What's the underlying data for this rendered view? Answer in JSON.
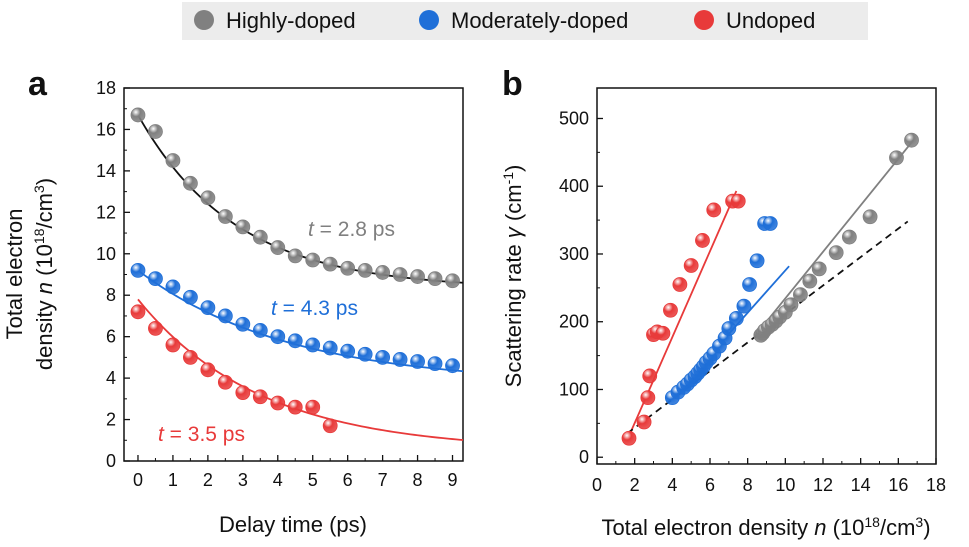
{
  "colors": {
    "highly": "#808080",
    "moderately": "#1f6fd8",
    "undoped": "#e83a3a",
    "fit_highly": "#111111"
  },
  "legend": {
    "items": [
      {
        "label": "Highly-doped",
        "color": "#808080"
      },
      {
        "label": "Moderately-doped",
        "color": "#1f6fd8"
      },
      {
        "label": "Undoped",
        "color": "#e83a3a"
      }
    ]
  },
  "chart_data": [
    {
      "panel": "a",
      "type": "scatter",
      "xlabel": "Delay time (ps)",
      "ylabel_line1": "Total electron",
      "ylabel_line2_pre": "density ",
      "ylabel_var": "n",
      "ylabel_line2_post": " (10",
      "ylabel_sup": "18",
      "ylabel_tail": "/cm",
      "ylabel_sup2": "3",
      "ylabel_close": ")",
      "xlim": [
        -0.4,
        9.3
      ],
      "ylim": [
        0,
        18
      ],
      "xticks": [
        "0",
        "1",
        "2",
        "3",
        "4",
        "5",
        "6",
        "7",
        "8",
        "9"
      ],
      "yticks": [
        "0",
        "2",
        "4",
        "6",
        "8",
        "10",
        "12",
        "14",
        "16",
        "18"
      ],
      "series": [
        {
          "name": "Highly-doped",
          "x": [
            0,
            0.5,
            1,
            1.5,
            2,
            2.5,
            3,
            3.5,
            4,
            4.5,
            5,
            5.5,
            6,
            6.5,
            7,
            7.5,
            8,
            8.5,
            9
          ],
          "y": [
            16.7,
            15.9,
            14.5,
            13.4,
            12.7,
            11.8,
            11.3,
            10.8,
            10.3,
            9.9,
            9.7,
            9.5,
            9.3,
            9.2,
            9.1,
            9.0,
            8.9,
            8.8,
            8.7
          ]
        },
        {
          "name": "Moderately-doped",
          "x": [
            0,
            0.5,
            1,
            1.5,
            2,
            2.5,
            3,
            3.5,
            4,
            4.5,
            5,
            5.5,
            6,
            6.5,
            7,
            7.5,
            8,
            8.5,
            9
          ],
          "y": [
            9.2,
            8.8,
            8.4,
            7.9,
            7.4,
            7.0,
            6.6,
            6.3,
            6.0,
            5.8,
            5.6,
            5.45,
            5.3,
            5.15,
            5.0,
            4.9,
            4.8,
            4.7,
            4.6
          ]
        },
        {
          "name": "Undoped",
          "x": [
            0,
            0.5,
            1,
            1.5,
            2,
            2.5,
            3,
            3.5,
            4,
            4.5,
            5,
            5.5
          ],
          "y": [
            7.2,
            6.4,
            5.6,
            5.0,
            4.4,
            3.8,
            3.3,
            3.1,
            2.8,
            2.6,
            2.6,
            1.7
          ]
        }
      ],
      "fits": [
        {
          "series": "Highly-doped",
          "tau": 2.8,
          "a": 8.4,
          "c": 8.3,
          "xmax": 9.3
        },
        {
          "series": "Moderately-doped",
          "tau": 4.3,
          "a": 5.5,
          "c": 3.7,
          "xmax": 9.3
        },
        {
          "series": "Undoped",
          "tau": 3.5,
          "a": 7.3,
          "c": 0.5,
          "xmax": 9.3
        }
      ],
      "annotations": [
        {
          "var": "t",
          "text": " = 2.8 ps",
          "series": "Highly-doped"
        },
        {
          "var": "t",
          "text": " = 4.3 ps",
          "series": "Moderately-doped"
        },
        {
          "var": "t",
          "text": " = 3.5 ps",
          "series": "Undoped"
        }
      ]
    },
    {
      "panel": "b",
      "type": "scatter",
      "xlabel_pre": "Total electron density ",
      "xlabel_var": "n",
      "xlabel_mid": " (10",
      "xlabel_sup": "18",
      "xlabel_tail": "/cm",
      "xlabel_sup2": "3",
      "xlabel_close": ")",
      "ylabel_pre": "Scattering rate ",
      "ylabel_var": "γ",
      "ylabel_mid": " (cm",
      "ylabel_sup": "-1",
      "ylabel_close": ")",
      "xlim": [
        0,
        18
      ],
      "ylim": [
        -10,
        545
      ],
      "xticks": [
        "0",
        "2",
        "4",
        "6",
        "8",
        "10",
        "12",
        "14",
        "16",
        "18"
      ],
      "yticks": [
        "0",
        "100",
        "200",
        "300",
        "400",
        "500"
      ],
      "series": [
        {
          "name": "Highly-doped",
          "x": [
            8.7,
            8.8,
            8.9,
            9.1,
            9.3,
            9.5,
            9.7,
            10.0,
            10.3,
            10.8,
            11.3,
            11.8,
            12.7,
            13.4,
            14.5,
            15.9,
            16.7
          ],
          "y": [
            180,
            183,
            187,
            192,
            196,
            201,
            207,
            214,
            225,
            240,
            260,
            278,
            302,
            325,
            355,
            442,
            468
          ]
        },
        {
          "name": "Moderately-doped",
          "x": [
            4.0,
            4.3,
            4.6,
            4.8,
            5.0,
            5.2,
            5.35,
            5.5,
            5.65,
            5.8,
            6.0,
            6.2,
            6.5,
            6.8,
            7.0,
            7.4,
            7.8,
            8.1,
            8.5,
            8.9,
            9.2
          ],
          "y": [
            88,
            96,
            103,
            108,
            114,
            119,
            124,
            129,
            134,
            140,
            146,
            153,
            164,
            176,
            190,
            205,
            223,
            255,
            290,
            345,
            345
          ]
        },
        {
          "name": "Undoped",
          "x": [
            1.7,
            2.5,
            2.7,
            2.8,
            3.0,
            3.2,
            3.5,
            3.9,
            4.4,
            5.0,
            5.6,
            6.2,
            7.2,
            7.5
          ],
          "y": [
            28,
            52,
            88,
            120,
            181,
            185,
            183,
            217,
            255,
            283,
            320,
            365,
            378,
            378
          ]
        }
      ],
      "fits": [
        {
          "series": "Highly-doped",
          "x": [
            8.5,
            16.8
          ],
          "y": [
            183,
            468
          ]
        },
        {
          "series": "Moderately-doped",
          "x": [
            3.8,
            10.2
          ],
          "y": [
            82,
            282
          ]
        },
        {
          "series": "Undoped",
          "x": [
            1.6,
            7.4
          ],
          "y": [
            25,
            393
          ]
        },
        {
          "series": "reference",
          "style": "dashed",
          "x": [
            1.6,
            16.5
          ],
          "y": [
            35,
            348
          ]
        }
      ]
    }
  ]
}
